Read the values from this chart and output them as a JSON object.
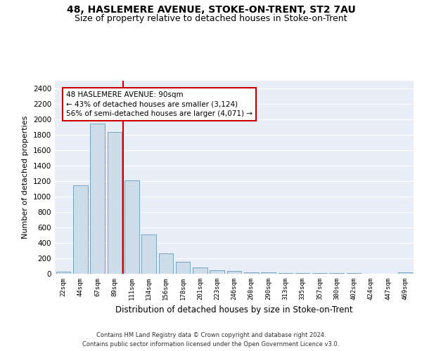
{
  "title1": "48, HASLEMERE AVENUE, STOKE-ON-TRENT, ST2 7AU",
  "title2": "Size of property relative to detached houses in Stoke-on-Trent",
  "xlabel": "Distribution of detached houses by size in Stoke-on-Trent",
  "ylabel": "Number of detached properties",
  "categories": [
    "22sqm",
    "44sqm",
    "67sqm",
    "89sqm",
    "111sqm",
    "134sqm",
    "156sqm",
    "178sqm",
    "201sqm",
    "223sqm",
    "246sqm",
    "268sqm",
    "290sqm",
    "313sqm",
    "335sqm",
    "357sqm",
    "380sqm",
    "402sqm",
    "424sqm",
    "447sqm",
    "469sqm"
  ],
  "values": [
    30,
    1150,
    1950,
    1840,
    1210,
    510,
    265,
    155,
    85,
    45,
    38,
    22,
    15,
    12,
    10,
    8,
    6,
    5,
    4,
    3,
    20
  ],
  "bar_color": "#ccdce8",
  "bar_edge_color": "#6699bb",
  "annotation_text": "48 HASLEMERE AVENUE: 90sqm\n← 43% of detached houses are smaller (3,124)\n56% of semi-detached houses are larger (4,071) →",
  "vline_x": 3.5,
  "vline_color": "#cc0000",
  "ylim": [
    0,
    2500
  ],
  "yticks": [
    0,
    200,
    400,
    600,
    800,
    1000,
    1200,
    1400,
    1600,
    1800,
    2000,
    2200,
    2400
  ],
  "bg_color": "#e8eef8",
  "footer": "Contains HM Land Registry data © Crown copyright and database right 2024.\nContains public sector information licensed under the Open Government Licence v3.0.",
  "title1_fontsize": 10,
  "title2_fontsize": 9,
  "xlabel_fontsize": 8.5,
  "ylabel_fontsize": 8
}
